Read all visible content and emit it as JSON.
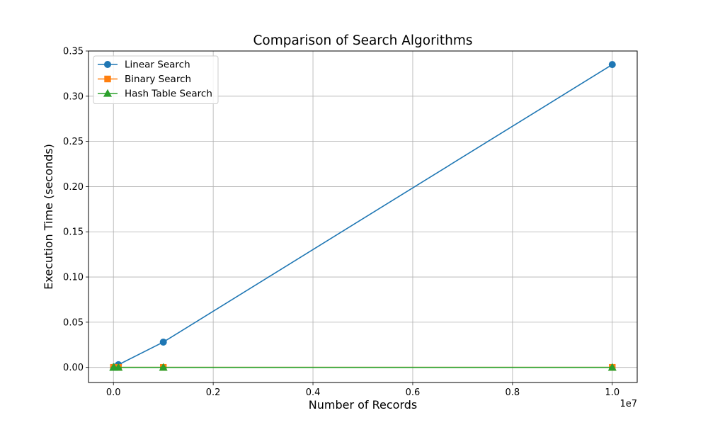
{
  "chart_data": {
    "type": "line",
    "title": "Comparison of Search Algorithms",
    "xlabel": "Number of Records",
    "ylabel": "Execution Time (seconds)",
    "x_offset_label": "1e7",
    "x_scale": 10000000,
    "xlim": [
      -0.05,
      1.05
    ],
    "ylim": [
      -0.0167,
      0.35
    ],
    "x_ticks": [
      0.0,
      0.2,
      0.4,
      0.6,
      0.8,
      1.0
    ],
    "x_tick_labels": [
      "0.0",
      "0.2",
      "0.4",
      "0.6",
      "0.8",
      "1.0"
    ],
    "y_ticks": [
      0.0,
      0.05,
      0.1,
      0.15,
      0.2,
      0.25,
      0.3,
      0.35
    ],
    "y_tick_labels": [
      "0.00",
      "0.05",
      "0.10",
      "0.15",
      "0.20",
      "0.25",
      "0.30",
      "0.35"
    ],
    "grid": true,
    "legend_position": "top-left",
    "x": [
      1000,
      10000,
      100000,
      1000000,
      10000000
    ],
    "series": [
      {
        "name": "Linear Search",
        "values": [
          3e-05,
          0.0003,
          0.003,
          0.028,
          0.335
        ],
        "color": "#1f77b4",
        "marker": "circle"
      },
      {
        "name": "Binary Search",
        "values": [
          1e-05,
          1e-05,
          1e-05,
          2e-05,
          3e-05
        ],
        "color": "#ff7f0e",
        "marker": "square"
      },
      {
        "name": "Hash Table Search",
        "values": [
          1e-06,
          1e-06,
          1e-06,
          1e-06,
          1e-06
        ],
        "color": "#2ca02c",
        "marker": "triangle"
      }
    ]
  }
}
